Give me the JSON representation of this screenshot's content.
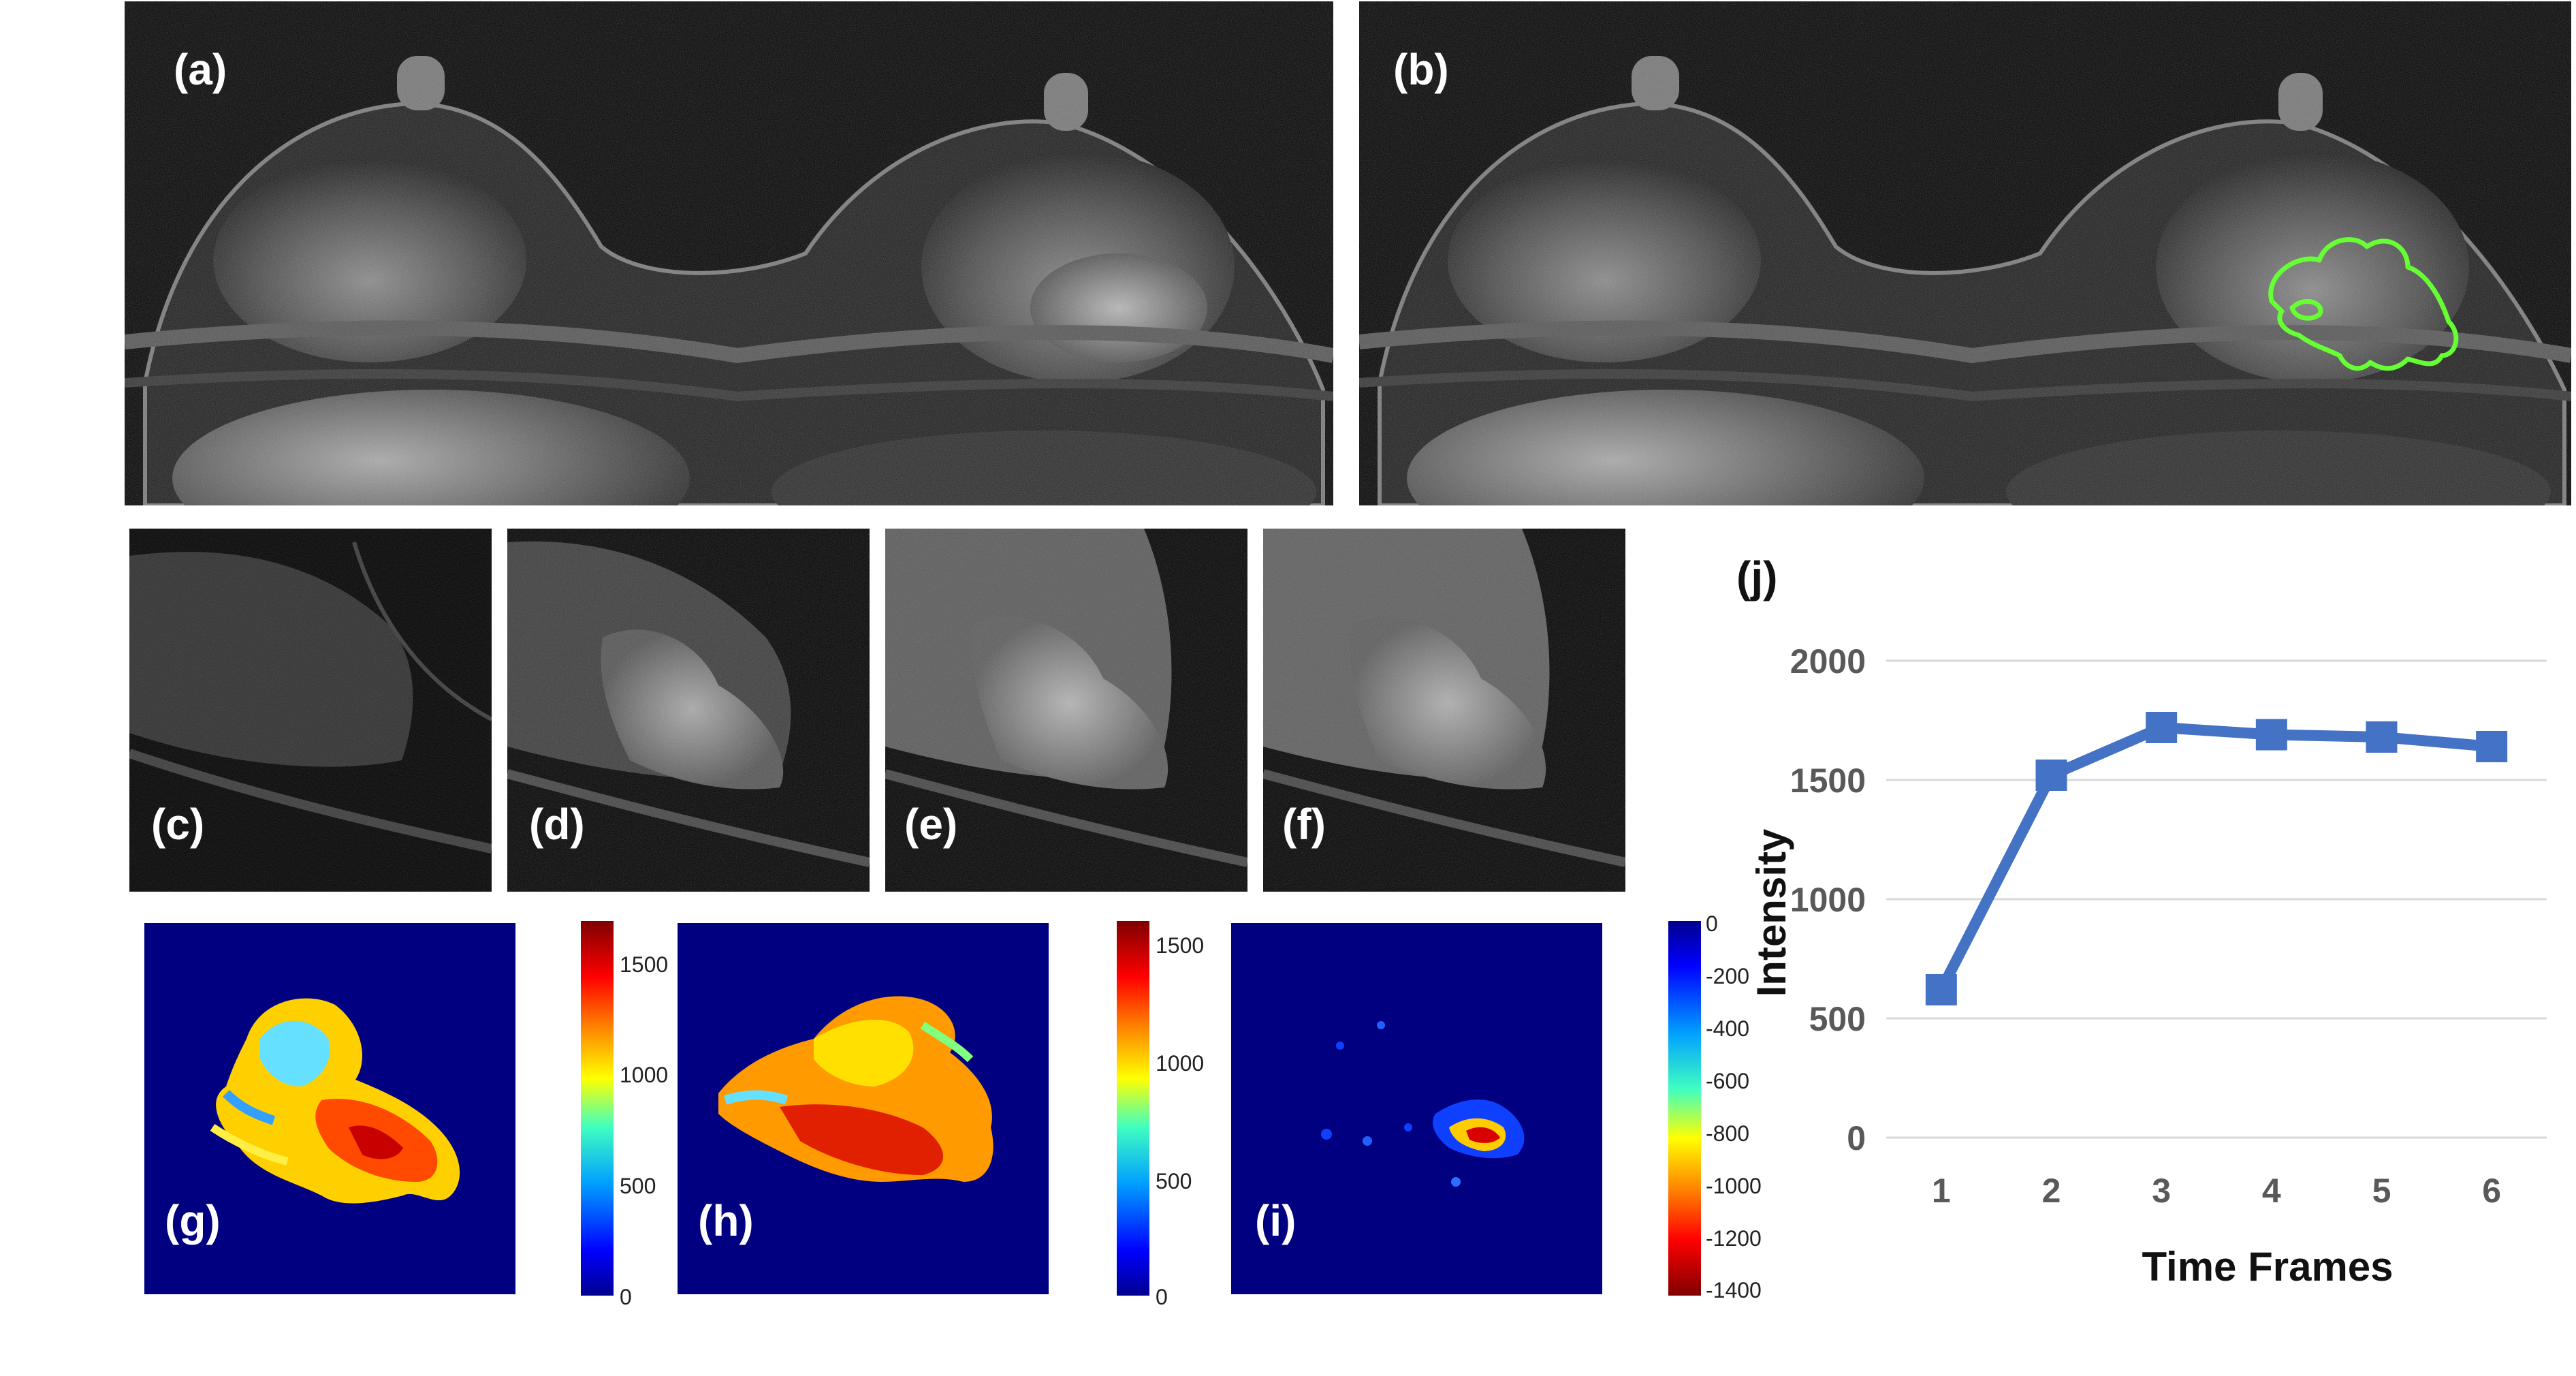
{
  "panels": {
    "a": "(a)",
    "b": "(b)",
    "c": "(c)",
    "d": "(d)",
    "e": "(e)",
    "f": "(f)",
    "g": "(g)",
    "h": "(h)",
    "i": "(i)",
    "j": "(j)"
  },
  "colorbars": {
    "g": [
      "1500",
      "1000",
      "500",
      "0"
    ],
    "h": [
      "1500",
      "1000",
      "500",
      "0"
    ],
    "i": [
      "0",
      "-200",
      "-400",
      "-600",
      "-800",
      "-1000",
      "-1200",
      "-1400"
    ]
  },
  "colors": {
    "contour": "#66ff33",
    "line": "#4472c4",
    "map_bg": "#000080"
  },
  "chart_data": {
    "type": "line",
    "title": "",
    "xlabel": "Time Frames",
    "ylabel": "Intensity",
    "categories": [
      "1",
      "2",
      "3",
      "4",
      "5",
      "6"
    ],
    "values": [
      620,
      1520,
      1720,
      1690,
      1680,
      1640
    ],
    "ylim": [
      0,
      2000
    ],
    "yticks": [
      "0",
      "500",
      "1000",
      "1500",
      "2000"
    ],
    "grid": true
  }
}
